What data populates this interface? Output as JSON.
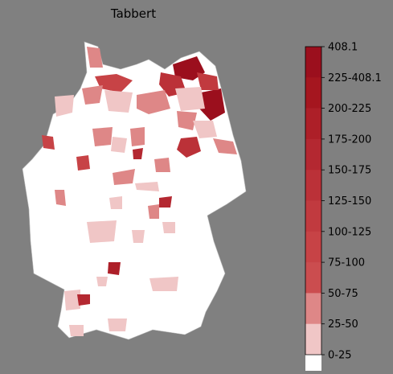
{
  "title": "Tabbert",
  "colorbar": {
    "labels": [
      "408.1",
      "225-408.1",
      "200-225",
      "175-200",
      "150-175",
      "125-150",
      "100-125",
      "75-100",
      "50-75",
      "25-50",
      "0-25"
    ],
    "colors": [
      "#9b0f1d",
      "#a5161f",
      "#ad1f28",
      "#b42831",
      "#bb3138",
      "#c13a3f",
      "#c74346",
      "#cb4d4f",
      "#de8787",
      "#f0c6c6",
      "#ffffff"
    ]
  }
}
